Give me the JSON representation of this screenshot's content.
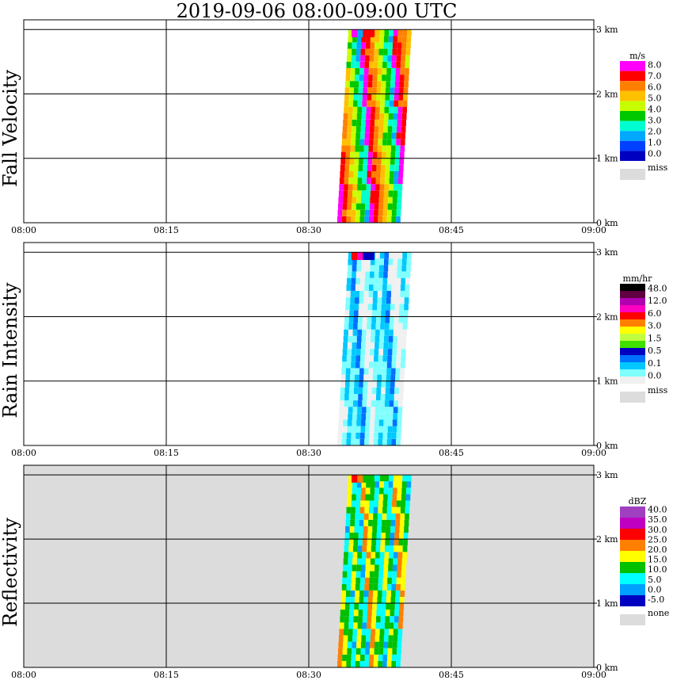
{
  "title": "2019-09-06   08:00-09:00 UTC",
  "x_ticks": [
    "08:00",
    "08:15",
    "08:30",
    "08:45",
    "09:00"
  ],
  "y_ticks": [
    "0 km",
    "1 km",
    "2 km",
    "3 km"
  ],
  "chart_data": [
    {
      "type": "heatmap",
      "title": "Fall Velocity",
      "x_range": [
        "08:00",
        "09:00"
      ],
      "y_range_km": [
        0,
        3
      ],
      "grid": true,
      "legend": {
        "unit": "m/s",
        "labels": [
          "8.0",
          "7.0",
          "6.0",
          "5.0",
          "4.0",
          "3.0",
          "2.0",
          "1.0",
          "0.0"
        ],
        "colors": [
          "#ff00ff",
          "#ff0000",
          "#ff8000",
          "#ffc000",
          "#c8ff00",
          "#00c800",
          "#00ffd0",
          "#00a8ff",
          "#0040ff",
          "#0000c0"
        ],
        "missing_label": "miss",
        "missing_color": "#dcdcdc",
        "placement": "right"
      },
      "echo": {
        "start": "08:33",
        "end": "08:40",
        "top_km": 3.0
      }
    },
    {
      "type": "heatmap",
      "title": "Rain Intensity",
      "x_range": [
        "08:00",
        "09:00"
      ],
      "y_range_km": [
        0,
        3
      ],
      "grid": true,
      "legend": {
        "unit": "mm/hr",
        "labels": [
          "48.0",
          "12.0",
          "6.0",
          "3.0",
          "1.5",
          "0.5",
          "0.1",
          "0.0"
        ],
        "colors": [
          "#000000",
          "#600040",
          "#b000b0",
          "#ff00c0",
          "#ff0000",
          "#ff8000",
          "#ffff00",
          "#c0ff40",
          "#40e000",
          "#0000c0",
          "#0070ff",
          "#00c8ff",
          "#80ffff",
          "#f0f0f0"
        ],
        "missing_label": "miss",
        "missing_color": "#dcdcdc",
        "placement": "right"
      },
      "echo": {
        "start": "08:33",
        "end": "08:40",
        "top_km": 3.0
      }
    },
    {
      "type": "heatmap",
      "title": "Reflectivity",
      "x_range": [
        "08:00",
        "09:00"
      ],
      "y_range_km": [
        0,
        3
      ],
      "grid": true,
      "legend": {
        "unit": "dBZ",
        "labels": [
          "40.0",
          "35.0",
          "30.0",
          "25.0",
          "20.0",
          "15.0",
          "10.0",
          "5.0",
          "0.0",
          "-5.0"
        ],
        "colors": [
          "#a040c0",
          "#c000c0",
          "#ff0000",
          "#ff8000",
          "#ffff00",
          "#00c000",
          "#00ffff",
          "#00a0ff",
          "#0000c0"
        ],
        "missing_label": "none",
        "missing_color": "#dcdcdc",
        "placement": "right"
      },
      "echo": {
        "start": "08:33",
        "end": "08:40",
        "top_km": 3.0
      }
    }
  ]
}
